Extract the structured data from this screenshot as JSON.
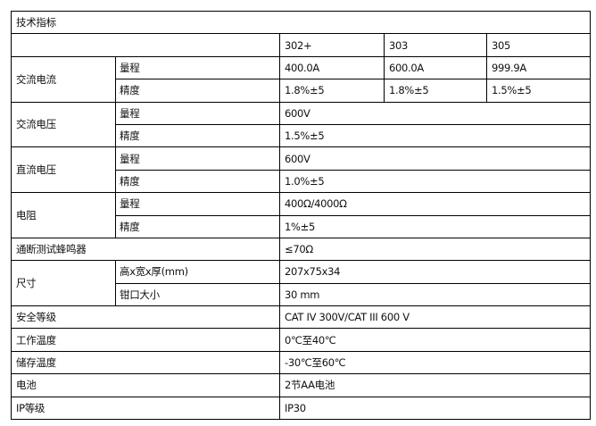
{
  "title": "技术指标",
  "models": [
    "302+",
    "303",
    "305"
  ],
  "ac_current": {
    "label": "交流电流",
    "range_label": "量程",
    "range": [
      "400.0A",
      "600.0A",
      "999.9A"
    ],
    "accuracy_label": "精度",
    "accuracy": [
      "1.8%±5",
      "1.8%±5",
      "1.5%±5"
    ]
  },
  "ac_voltage": {
    "label": "交流电压",
    "range_label": "量程",
    "range": "600V",
    "accuracy_label": "精度",
    "accuracy": "1.5%±5"
  },
  "dc_voltage": {
    "label": "直流电压",
    "range_label": "量程",
    "range": "600V",
    "accuracy_label": "精度",
    "accuracy": "1.0%±5"
  },
  "resistance": {
    "label": "电阻",
    "range_label": "量程",
    "range": "400Ω/4000Ω",
    "accuracy_label": "精度",
    "accuracy": "1%±5"
  },
  "continuity": {
    "label": "通断测试蜂鸣器",
    "value": "≤70Ω"
  },
  "size": {
    "label": "尺寸",
    "dims_label": "高x宽x厚(mm)",
    "dims": "207x75x34",
    "jaw_label": "钳口大小",
    "jaw": "30 mm"
  },
  "safety": {
    "label": "安全等级",
    "value": "CAT IV 300V/CAT III 600 V"
  },
  "operating_temp": {
    "label": "工作温度",
    "value": "0℃至40℃"
  },
  "storage_temp": {
    "label": "储存温度",
    "value": "-30℃至60℃"
  },
  "battery": {
    "label": "电池",
    "value": "2节AA电池"
  },
  "ip": {
    "label": "IP等级",
    "value": "IP30"
  }
}
